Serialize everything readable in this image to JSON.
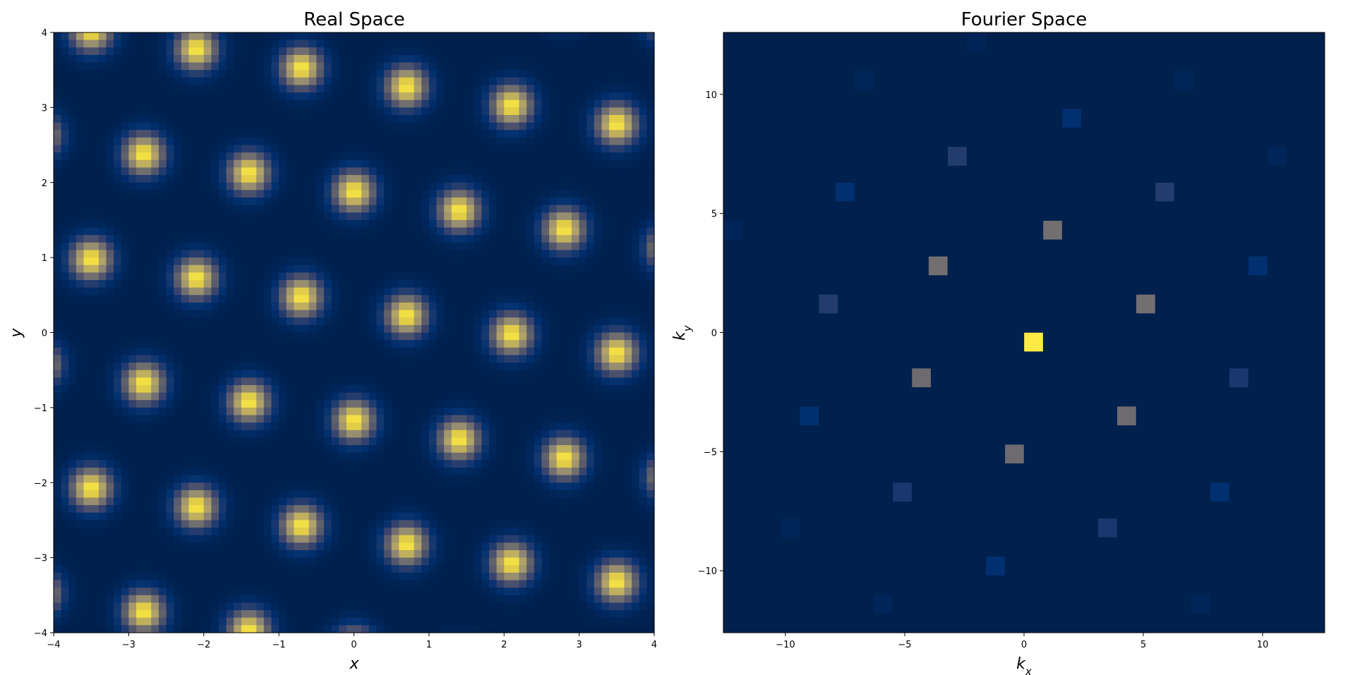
{
  "chart_data": [
    {
      "type": "heatmap",
      "title": "Real Space",
      "xlabel": "x",
      "ylabel": "y",
      "xlim": [
        -4,
        4
      ],
      "ylim": [
        -4,
        4
      ],
      "xticks": [
        -4,
        -3,
        -2,
        -1,
        0,
        1,
        2,
        3,
        4
      ],
      "yticks": [
        -4,
        -3,
        -2,
        -1,
        0,
        1,
        2,
        3,
        4
      ],
      "colormap": "cividis",
      "grid": false,
      "pixels_per_axis": 80,
      "lattice": {
        "origin": [
          0,
          1.875
        ],
        "a1": [
          1.4,
          -0.25
        ],
        "a2": [
          0.7,
          1.4
        ],
        "spot_width": 0.2,
        "peak_value": 1.0
      }
    },
    {
      "type": "heatmap",
      "title": "Fourier Space",
      "xlabel": "k_x",
      "ylabel": "k_y",
      "xlim": [
        -12.6,
        12.6
      ],
      "ylim": [
        -12.6,
        12.6
      ],
      "xticks": [
        -10,
        -5,
        0,
        5,
        10
      ],
      "yticks": [
        -10,
        -5,
        0,
        5,
        10
      ],
      "colormap": "cividis",
      "grid": false,
      "background_value": 0.0,
      "cell_size": 0.79,
      "peaks": [
        {
          "kx": 0.4,
          "ky": -0.4,
          "value": 1.0
        },
        {
          "kx": 1.2,
          "ky": 4.3,
          "value": 0.52
        },
        {
          "kx": -3.6,
          "ky": 2.8,
          "value": 0.52
        },
        {
          "kx": 5.1,
          "ky": 1.2,
          "value": 0.52
        },
        {
          "kx": -4.3,
          "ky": -1.9,
          "value": 0.5
        },
        {
          "kx": 4.3,
          "ky": -3.5,
          "value": 0.5
        },
        {
          "kx": -0.4,
          "ky": -5.1,
          "value": 0.5
        },
        {
          "kx": -2.8,
          "ky": 7.4,
          "value": 0.25
        },
        {
          "kx": 5.9,
          "ky": 5.9,
          "value": 0.25
        },
        {
          "kx": -8.2,
          "ky": 1.2,
          "value": 0.25
        },
        {
          "kx": 9.0,
          "ky": -1.9,
          "value": 0.22
        },
        {
          "kx": -5.1,
          "ky": -6.7,
          "value": 0.22
        },
        {
          "kx": 3.5,
          "ky": -8.2,
          "value": 0.22
        },
        {
          "kx": 2.0,
          "ky": 9.0,
          "value": 0.15
        },
        {
          "kx": -7.5,
          "ky": 5.9,
          "value": 0.15
        },
        {
          "kx": 9.8,
          "ky": 2.8,
          "value": 0.15
        },
        {
          "kx": -9.0,
          "ky": -3.5,
          "value": 0.15
        },
        {
          "kx": 8.2,
          "ky": -6.7,
          "value": 0.15
        },
        {
          "kx": -1.2,
          "ky": -9.8,
          "value": 0.15
        },
        {
          "kx": -6.7,
          "ky": 10.6,
          "value": 0.05
        },
        {
          "kx": 6.7,
          "ky": 10.6,
          "value": 0.05
        },
        {
          "kx": 10.6,
          "ky": 7.4,
          "value": 0.05
        },
        {
          "kx": -12.2,
          "ky": 4.3,
          "value": 0.05
        },
        {
          "kx": -9.8,
          "ky": -8.2,
          "value": 0.05
        },
        {
          "kx": -5.9,
          "ky": -11.4,
          "value": 0.05
        },
        {
          "kx": 7.4,
          "ky": -11.4,
          "value": 0.05
        },
        {
          "kx": -2.0,
          "ky": 12.2,
          "value": 0.04
        }
      ]
    }
  ]
}
